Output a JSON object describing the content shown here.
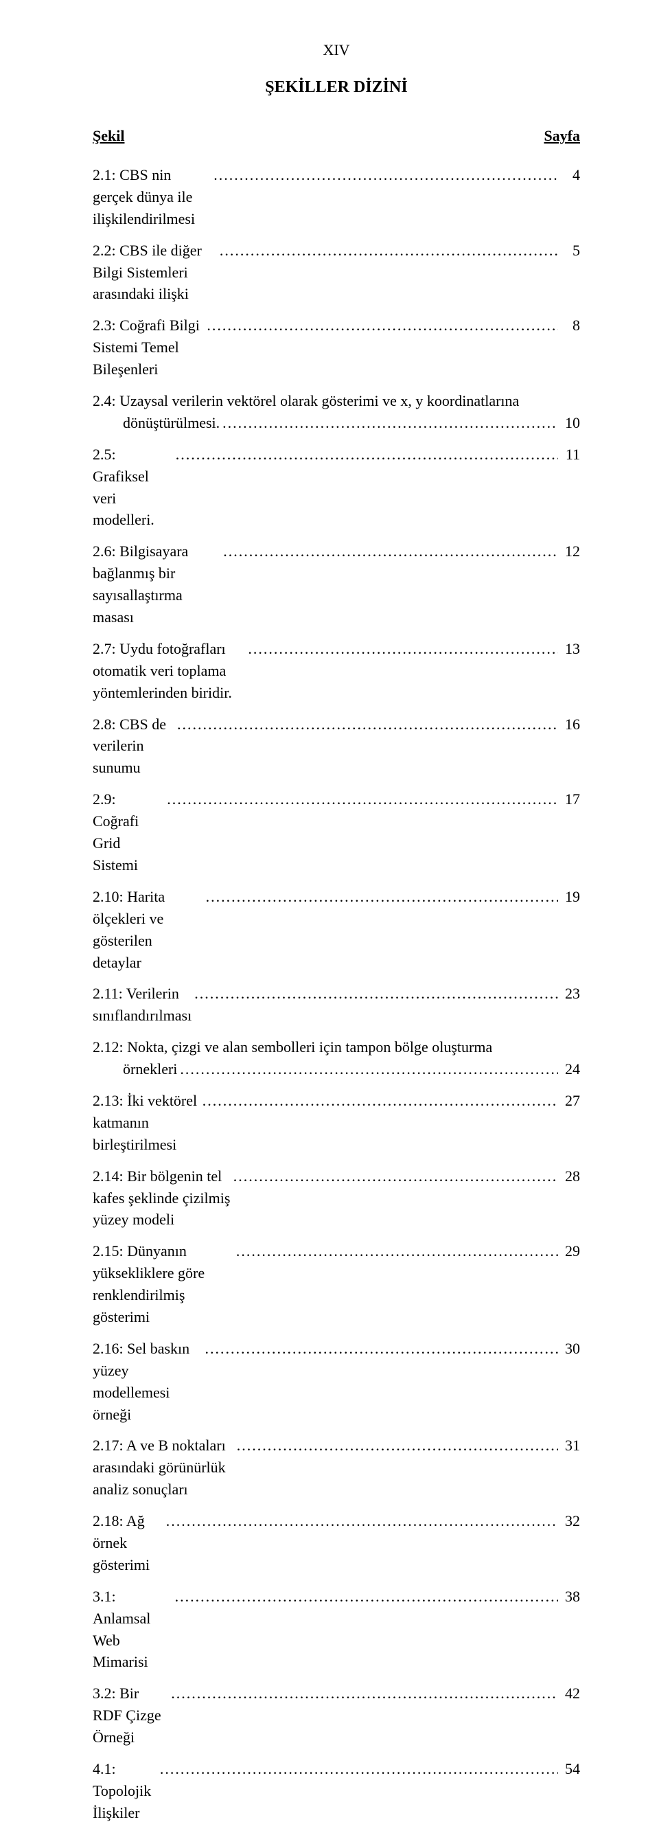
{
  "page_number": "XIV",
  "title": "ŞEKİLLER DİZİNİ",
  "header_left": "Şekil",
  "header_right": "Sayfa",
  "entries": [
    {
      "text": "2.1: CBS nin gerçek dünya ile ilişkilendirilmesi",
      "page": "4",
      "wrap": false
    },
    {
      "text": "2.2: CBS ile diğer Bilgi Sistemleri arasındaki ilişki",
      "page": "5",
      "wrap": false
    },
    {
      "text": "2.3: Coğrafi Bilgi Sistemi Temel Bileşenleri",
      "page": "8",
      "wrap": false
    },
    {
      "text_line1": "2.4: Uzaysal verilerin vektörel olarak gösterimi ve x, y koordinatlarına",
      "text_line2": "dönüştürülmesi.",
      "page": "10",
      "wrap": true
    },
    {
      "text": "2.5: Grafiksel veri modelleri.",
      "page": "11",
      "wrap": false
    },
    {
      "text": "2.6: Bilgisayara bağlanmış bir sayısallaştırma masası",
      "page": "12",
      "wrap": false
    },
    {
      "text": "2.7: Uydu fotoğrafları otomatik veri toplama yöntemlerinden biridir.",
      "page": "13",
      "wrap": false
    },
    {
      "text": "2.8: CBS de verilerin sunumu",
      "page": "16",
      "wrap": false
    },
    {
      "text": "2.9: Coğrafi Grid Sistemi",
      "page": "17",
      "wrap": false
    },
    {
      "text": "2.10: Harita ölçekleri ve gösterilen detaylar",
      "page": "19",
      "wrap": false
    },
    {
      "text": "2.11: Verilerin sınıflandırılması",
      "page": "23",
      "wrap": false
    },
    {
      "text_line1": "2.12: Nokta, çizgi ve alan sembolleri için tampon bölge oluşturma",
      "text_line2": "örnekleri",
      "page": "24",
      "wrap": true
    },
    {
      "text": "2.13: İki vektörel katmanın birleştirilmesi",
      "page": "27",
      "wrap": false
    },
    {
      "text": "2.14: Bir bölgenin tel kafes şeklinde çizilmiş yüzey modeli",
      "page": "28",
      "wrap": false
    },
    {
      "text": "2.15: Dünyanın yüksekliklere göre renklendirilmiş gösterimi",
      "page": "29",
      "wrap": false
    },
    {
      "text": "2.16: Sel baskın yüzey modellemesi örneği",
      "page": "30",
      "wrap": false
    },
    {
      "text": "2.17: A ve B noktaları arasındaki görünürlük analiz sonuçları",
      "page": "31",
      "wrap": false
    },
    {
      "text": "2.18: Ağ örnek gösterimi",
      "page": "32",
      "wrap": false
    },
    {
      "text": "3.1: Anlamsal Web Mimarisi",
      "page": "38",
      "wrap": false
    },
    {
      "text": "3.2: Bir RDF Çizge Örneği",
      "page": "42",
      "wrap": false
    },
    {
      "text": "4.1: Topolojik İlişkiler",
      "page": "54",
      "wrap": false
    }
  ]
}
